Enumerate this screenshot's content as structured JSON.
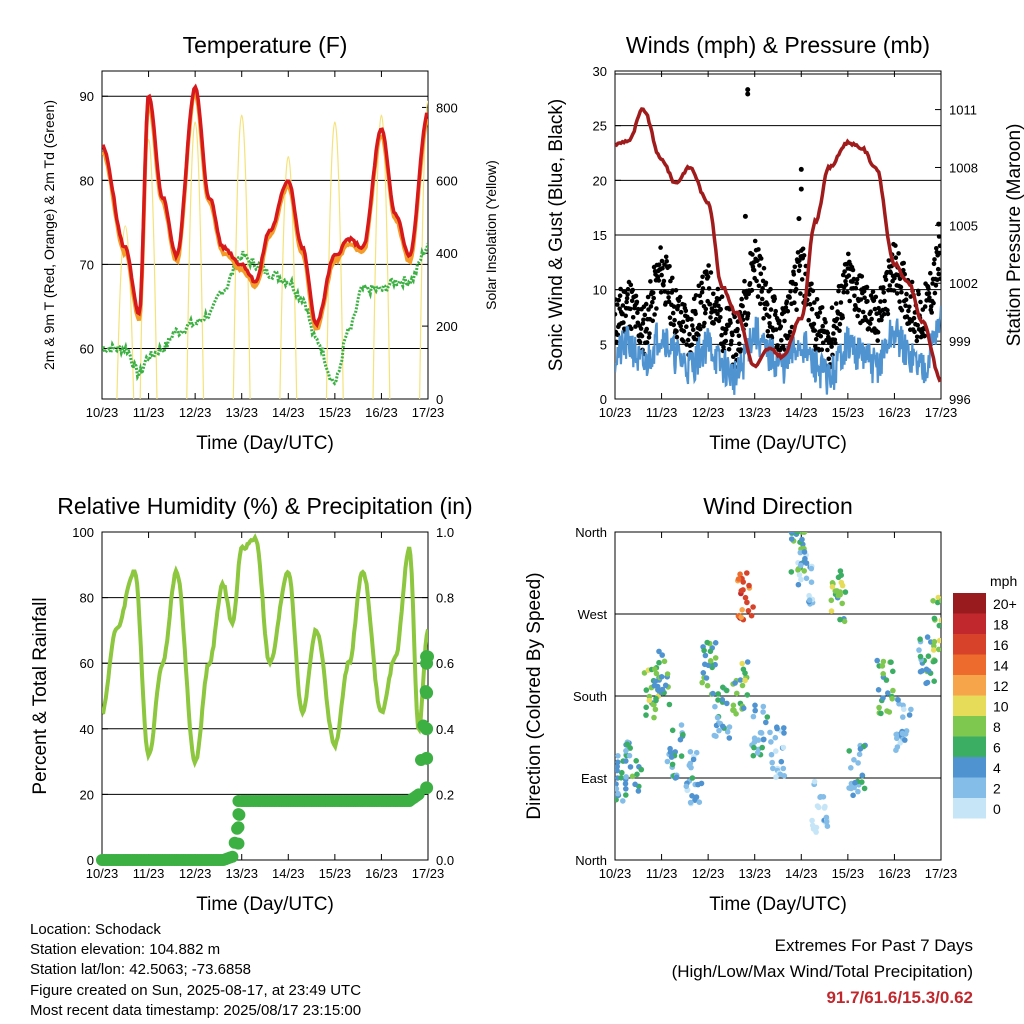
{
  "footer": {
    "location": "Location: Schodack",
    "elevation": "Station elevation: 104.882 m",
    "latlon": "Station lat/lon: 42.5063; -73.6858",
    "created": "Figure created on Sun, 2025-08-17, at 23:49 UTC",
    "recent": "Most recent data timestamp: 2025/08/17 23:15:00",
    "extremes_title": "Extremes For Past 7 Days",
    "extremes_sub": "(High/Low/Max Wind/Total Precipitation)",
    "extremes_values": "91.7/61.6/15.3/0.62"
  },
  "x_ticks": [
    "10/23",
    "11/23",
    "12/23",
    "13/23",
    "14/23",
    "15/23",
    "16/23",
    "17/23"
  ],
  "colors": {
    "temp2m": "#d7191c",
    "temp9m": "#f39c2a",
    "dewpoint": "#3cb043",
    "solar": "#f5e27a",
    "wind": "#4f93d1",
    "gust": "#000000",
    "pressure": "#a01c1c",
    "rh": "#8dc63f",
    "precip": "#3cb043"
  },
  "chart_data": [
    {
      "type": "line",
      "title": "Temperature (F)",
      "xlabel": "Time (Day/UTC)",
      "ylabel": "2m & 9m T (Red, Orange) & 2m Td (Green)",
      "y2label": "Solar Insolation (Yellow)",
      "x": [
        10,
        10.5,
        10.8,
        11,
        11.3,
        11.6,
        12,
        12.3,
        12.6,
        13,
        13.3,
        13.6,
        14,
        14.3,
        14.6,
        15,
        15.3,
        15.6,
        16,
        16.3,
        16.6,
        17
      ],
      "ylim": [
        54,
        93
      ],
      "y2lim": [
        0,
        900
      ],
      "yticks": [
        60,
        70,
        80,
        90
      ],
      "y2ticks": [
        0,
        200,
        400,
        600,
        800
      ],
      "series": [
        {
          "name": "2m T",
          "values": [
            84,
            72,
            64,
            90,
            78,
            71,
            91,
            78,
            72,
            70,
            68,
            74,
            80,
            72,
            63,
            71,
            73,
            72,
            86,
            76,
            71,
            88
          ]
        },
        {
          "name": "2m Td",
          "values": [
            60,
            60,
            57,
            59,
            60,
            62,
            63,
            64,
            67,
            71,
            70,
            69,
            68,
            66,
            61,
            56,
            62,
            67,
            67,
            68,
            68,
            72
          ]
        },
        {
          "name": "Solar Insolation",
          "values": [
            0,
            500,
            0,
            750,
            0,
            0,
            800,
            0,
            0,
            820,
            0,
            0,
            700,
            0,
            0,
            800,
            0,
            0,
            820,
            0,
            0,
            860
          ]
        }
      ]
    },
    {
      "type": "line",
      "title": "Winds (mph) & Pressure (mb)",
      "xlabel": "Time (Day/UTC)",
      "ylabel": "Sonic Wind & Gust (Blue, Black)",
      "y2label": "Station Pressure (Maroon)",
      "x": [
        10,
        10.3,
        10.6,
        11,
        11.3,
        11.6,
        12,
        12.3,
        12.6,
        13,
        13.3,
        13.6,
        14,
        14.3,
        14.6,
        15,
        15.3,
        15.6,
        16,
        16.3,
        16.6,
        17
      ],
      "ylim": [
        0,
        30
      ],
      "y2lim": [
        996,
        1013
      ],
      "yticks": [
        0,
        5,
        10,
        15,
        20,
        25,
        30
      ],
      "y2ticks": [
        996,
        999,
        1002,
        1005,
        1008,
        1011
      ],
      "series": [
        {
          "name": "Wind",
          "values": [
            4,
            5,
            3,
            6,
            4,
            3,
            5,
            3,
            2,
            6,
            4,
            3,
            5,
            3,
            2,
            5,
            4,
            3,
            6,
            4,
            3,
            7
          ]
        },
        {
          "name": "Gust",
          "values": [
            7,
            9,
            6,
            12,
            8,
            6,
            10,
            7,
            5,
            13,
            8,
            6,
            12,
            7,
            5,
            11,
            9,
            7,
            12,
            9,
            7,
            13
          ]
        },
        {
          "name": "Pressure",
          "values": [
            1009.2,
            1009.4,
            1011.0,
            1008.4,
            1007.2,
            1008.0,
            1006.2,
            1001.8,
            1000.5,
            997.7,
            998.6,
            998.2,
            1000.2,
            1005.2,
            1008.0,
            1009.3,
            1009.0,
            1008.0,
            1003.0,
            1002.0,
            1000.0,
            997.0
          ]
        }
      ]
    },
    {
      "type": "line",
      "title": "Relative Humidity (%) & Precipitation (in)",
      "xlabel": "Time (Day/UTC)",
      "ylabel": "Percent & Total Rainfall",
      "x": [
        10,
        10.3,
        10.7,
        11,
        11.3,
        11.6,
        12,
        12.3,
        12.6,
        12.8,
        13,
        13.3,
        13.6,
        14,
        14.3,
        14.6,
        15,
        15.3,
        15.6,
        16,
        16.3,
        16.6,
        16.8,
        17
      ],
      "ylim": [
        0,
        100
      ],
      "y2lim": [
        0,
        1.0
      ],
      "yticks": [
        0,
        20,
        40,
        60,
        80,
        100
      ],
      "y2ticks": [
        0.0,
        0.2,
        0.4,
        0.6,
        0.8,
        1.0
      ],
      "series": [
        {
          "name": "RH",
          "values": [
            45,
            70,
            88,
            32,
            60,
            88,
            30,
            60,
            84,
            72,
            95,
            98,
            60,
            88,
            45,
            70,
            35,
            60,
            88,
            45,
            62,
            95,
            40,
            70
          ]
        },
        {
          "name": "Total Rainfall",
          "values": [
            0,
            0,
            0,
            0,
            0,
            0,
            0,
            0,
            0,
            0.01,
            0.18,
            0.18,
            0.18,
            0.18,
            0.18,
            0.18,
            0.18,
            0.18,
            0.18,
            0.18,
            0.18,
            0.18,
            0.2,
            0.62
          ]
        }
      ]
    },
    {
      "type": "scatter",
      "title": "Wind Direction",
      "xlabel": "Time (Day/UTC)",
      "ylabel": "Direction (Colored By Speed)",
      "yticks": [
        "North",
        "East",
        "South",
        "West",
        "North"
      ],
      "legend_title": "mph",
      "legend_labels": [
        "20+",
        "18",
        "16",
        "14",
        "12",
        "10",
        "8",
        "6",
        "4",
        "2",
        "0"
      ],
      "legend_colors": [
        "#9a1b1e",
        "#c0282d",
        "#d7422a",
        "#ec6b2d",
        "#f6a54a",
        "#e6dc5a",
        "#7ec850",
        "#3cae63",
        "#4f93d1",
        "#83bde8",
        "#c6e6f7"
      ],
      "points": [
        {
          "x": 10.1,
          "dir": 90,
          "speed": 4
        },
        {
          "x": 10.4,
          "dir": 100,
          "speed": 5
        },
        {
          "x": 10.8,
          "dir": 180,
          "speed": 7
        },
        {
          "x": 11.0,
          "dir": 200,
          "speed": 6
        },
        {
          "x": 11.3,
          "dir": 120,
          "speed": 4
        },
        {
          "x": 11.7,
          "dir": 90,
          "speed": 3
        },
        {
          "x": 12.0,
          "dir": 210,
          "speed": 6
        },
        {
          "x": 12.3,
          "dir": 160,
          "speed": 4
        },
        {
          "x": 12.7,
          "dir": 190,
          "speed": 7
        },
        {
          "x": 12.8,
          "dir": 290,
          "speed": 15
        },
        {
          "x": 13.1,
          "dir": 140,
          "speed": 3
        },
        {
          "x": 13.5,
          "dir": 120,
          "speed": 2
        },
        {
          "x": 13.9,
          "dir": 340,
          "speed": 6
        },
        {
          "x": 14.1,
          "dir": 310,
          "speed": 2
        },
        {
          "x": 14.4,
          "dir": 60,
          "speed": 1
        },
        {
          "x": 14.8,
          "dir": 290,
          "speed": 7
        },
        {
          "x": 15.2,
          "dir": 100,
          "speed": 4
        },
        {
          "x": 15.8,
          "dir": 190,
          "speed": 6
        },
        {
          "x": 16.2,
          "dir": 150,
          "speed": 3
        },
        {
          "x": 16.7,
          "dir": 220,
          "speed": 5
        },
        {
          "x": 17.0,
          "dir": 260,
          "speed": 8
        }
      ]
    }
  ]
}
